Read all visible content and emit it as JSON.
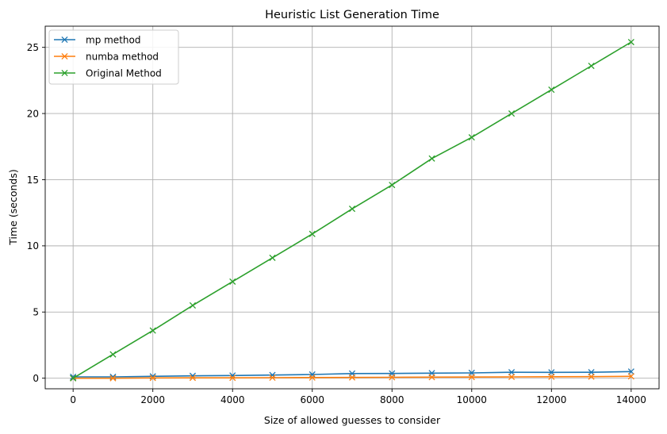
{
  "chart_data": {
    "type": "line",
    "title": "Heuristic List Generation Time",
    "xlabel": "Size of allowed guesses to consider",
    "ylabel": "Time (seconds)",
    "xlim": [
      -700,
      14700
    ],
    "ylim": [
      -0.8,
      26.6
    ],
    "xticks": [
      0,
      2000,
      4000,
      6000,
      8000,
      10000,
      12000,
      14000
    ],
    "yticks": [
      0,
      5,
      10,
      15,
      20,
      25
    ],
    "grid": true,
    "legend_position": "top-left",
    "marker": "x",
    "x": [
      0,
      1000,
      2000,
      3000,
      4000,
      5000,
      6000,
      7000,
      8000,
      9000,
      10000,
      11000,
      12000,
      13000,
      14000
    ],
    "series": [
      {
        "name": "mp method",
        "color": "#1f77b4",
        "values": [
          0.1,
          0.1,
          0.14,
          0.18,
          0.2,
          0.24,
          0.28,
          0.35,
          0.36,
          0.38,
          0.4,
          0.45,
          0.44,
          0.45,
          0.5
        ]
      },
      {
        "name": "numba method",
        "color": "#ff7f0e",
        "values": [
          0.0,
          0.0,
          0.02,
          0.03,
          0.03,
          0.04,
          0.05,
          0.06,
          0.07,
          0.08,
          0.09,
          0.1,
          0.11,
          0.12,
          0.14
        ]
      },
      {
        "name": "Original Method",
        "color": "#2ca02c",
        "values": [
          0.0,
          1.8,
          3.6,
          5.5,
          7.3,
          9.1,
          10.9,
          12.8,
          14.6,
          16.6,
          18.2,
          20.0,
          21.8,
          23.6,
          25.4
        ]
      }
    ]
  }
}
